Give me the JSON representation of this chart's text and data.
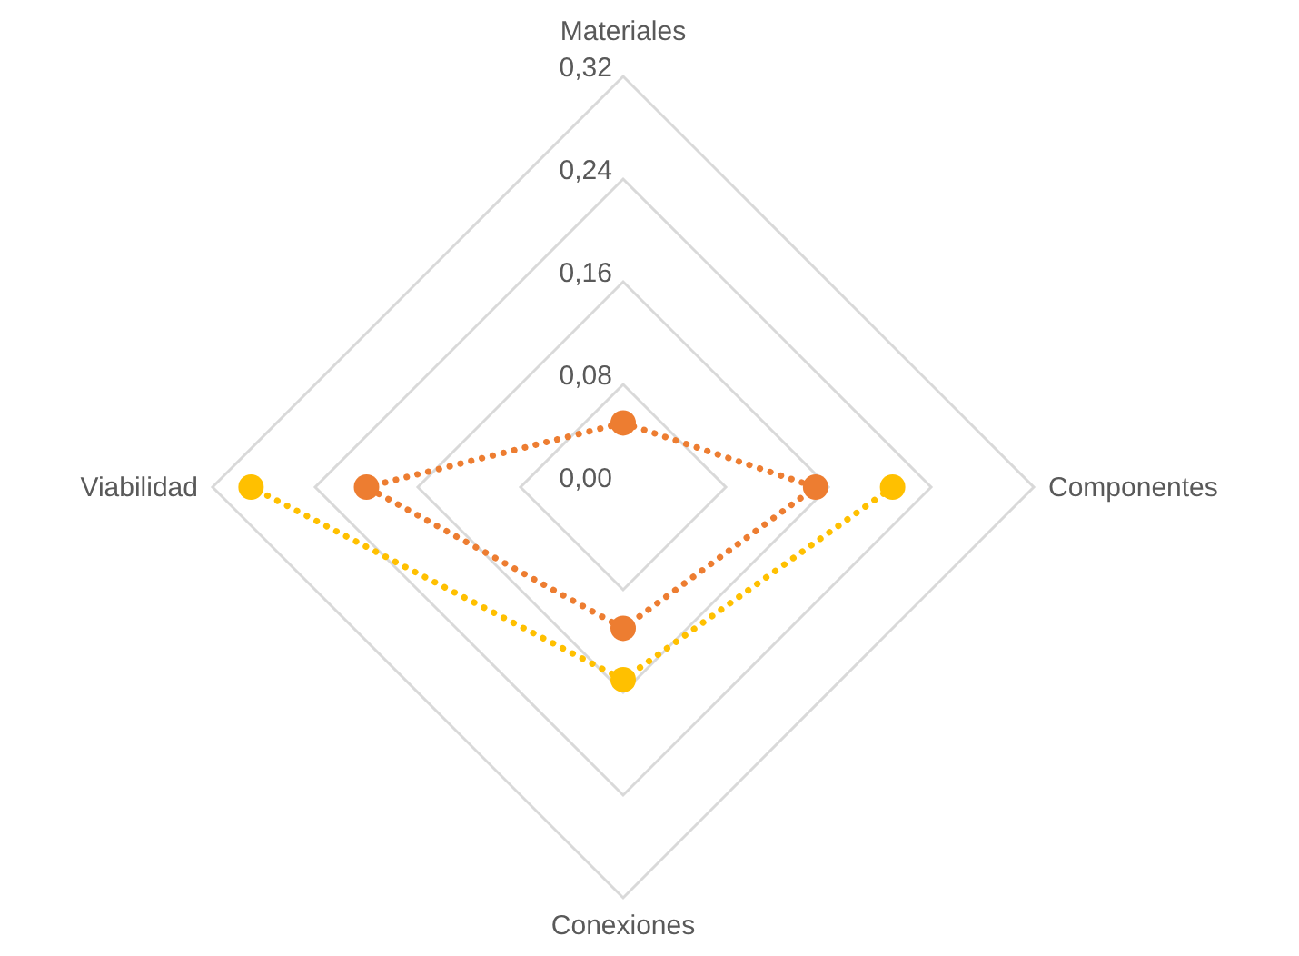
{
  "chart_data": {
    "type": "radar",
    "categories": [
      "Materiales",
      "Componentes",
      "Conexiones",
      "Viabilidad"
    ],
    "series": [
      {
        "color": "#ed7d31",
        "values": [
          0.05,
          0.15,
          0.11,
          0.2
        ]
      },
      {
        "color": "#ffc000",
        "values": [
          null,
          0.21,
          0.15,
          0.29
        ]
      }
    ],
    "ylim": [
      0,
      0.32
    ],
    "yticks": [
      {
        "value": 0,
        "label": "0,00"
      },
      {
        "value": 0.08,
        "label": "0,08"
      },
      {
        "value": 0.16,
        "label": "0,16"
      },
      {
        "value": 0.24,
        "label": "0,24"
      },
      {
        "value": 0.32,
        "label": "0,32"
      }
    ],
    "grid": true,
    "legend": false,
    "marker": "circle",
    "line_style": "dotted"
  }
}
